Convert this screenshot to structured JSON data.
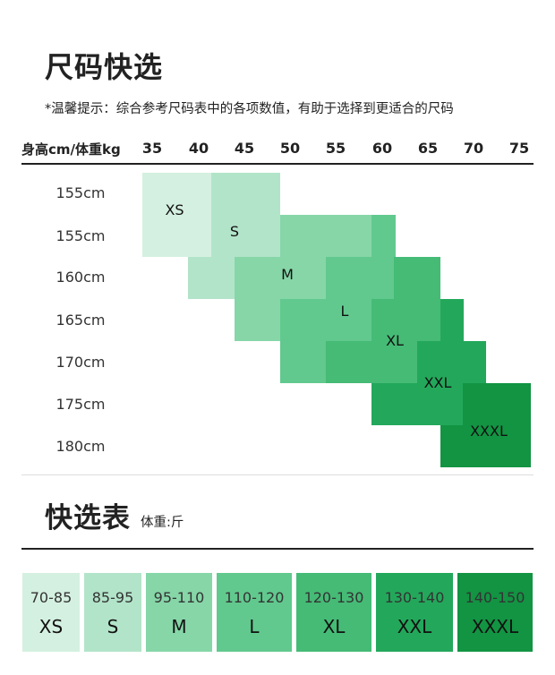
{
  "quick_select": {
    "title": "尺码快选",
    "tip": "*温馨提示：综合参考尺码表中的各项数值，有助于选择到更适合的尺码",
    "header_label": "身高cm/体重kg",
    "weights": [
      "35",
      "40",
      "45",
      "50",
      "55",
      "60",
      "65",
      "70",
      "75"
    ],
    "heights": [
      "155cm",
      "155cm",
      "160cm",
      "165cm",
      "170cm",
      "175cm",
      "180cm"
    ],
    "sizes": [
      {
        "label": "XS",
        "color": "#d4f0e0"
      },
      {
        "label": "S",
        "color": "#b2e4c9"
      },
      {
        "label": "M",
        "color": "#86d6a8"
      },
      {
        "label": "L",
        "color": "#61c98e"
      },
      {
        "label": "XL",
        "color": "#45bb76"
      },
      {
        "label": "XXL",
        "color": "#23a85b"
      },
      {
        "label": "XXXL",
        "color": "#129443"
      }
    ]
  },
  "quick_table": {
    "title": "快选表",
    "subtitle": "体重:斤",
    "cards": [
      {
        "range": "70-85",
        "size": "XS",
        "color": "#d4f0e0"
      },
      {
        "range": "85-95",
        "size": "S",
        "color": "#b2e4c9"
      },
      {
        "range": "95-110",
        "size": "M",
        "color": "#86d6a8"
      },
      {
        "range": "110-120",
        "size": "L",
        "color": "#61c98e"
      },
      {
        "range": "120-130",
        "size": "XL",
        "color": "#45bb76"
      },
      {
        "range": "130-140",
        "size": "XXL",
        "color": "#23a85b"
      },
      {
        "range": "140-150",
        "size": "XXXL",
        "color": "#129443"
      }
    ]
  }
}
